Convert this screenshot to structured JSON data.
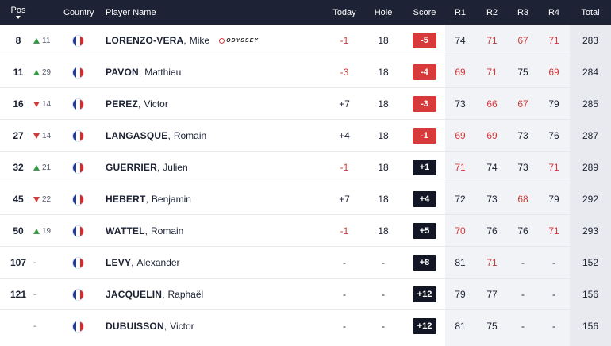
{
  "headers": {
    "pos": "Pos",
    "country": "Country",
    "player": "Player Name",
    "today": "Today",
    "hole": "Hole",
    "score": "Score",
    "r1": "R1",
    "r2": "R2",
    "r3": "R3",
    "r4": "R4",
    "total": "Total"
  },
  "sponsor": {
    "label": "ODYSSEY",
    "icon": "odyssey-logo"
  },
  "colors": {
    "header_bg": "#1d2235",
    "under_par": "#d63a3a",
    "over_par": "#121625",
    "up": "#3a9a4a",
    "down": "#d23a3a"
  },
  "rows": [
    {
      "pos": "8",
      "move_dir": "up",
      "move": "11",
      "last": "LORENZO-VERA",
      "first": "Mike",
      "sponsor": true,
      "today": "-1",
      "hole": "18",
      "score": "-5",
      "r1": "74",
      "r2": "71",
      "r3": "67",
      "r4": "71",
      "total": "283"
    },
    {
      "pos": "11",
      "move_dir": "up",
      "move": "29",
      "last": "PAVON",
      "first": "Matthieu",
      "sponsor": false,
      "today": "-3",
      "hole": "18",
      "score": "-4",
      "r1": "69",
      "r2": "71",
      "r3": "75",
      "r4": "69",
      "total": "284"
    },
    {
      "pos": "16",
      "move_dir": "down",
      "move": "14",
      "last": "PEREZ",
      "first": "Victor",
      "sponsor": false,
      "today": "+7",
      "hole": "18",
      "score": "-3",
      "r1": "73",
      "r2": "66",
      "r3": "67",
      "r4": "79",
      "total": "285"
    },
    {
      "pos": "27",
      "move_dir": "down",
      "move": "14",
      "last": "LANGASQUE",
      "first": "Romain",
      "sponsor": false,
      "today": "+4",
      "hole": "18",
      "score": "-1",
      "r1": "69",
      "r2": "69",
      "r3": "73",
      "r4": "76",
      "total": "287"
    },
    {
      "pos": "32",
      "move_dir": "up",
      "move": "21",
      "last": "GUERRIER",
      "first": "Julien",
      "sponsor": false,
      "today": "-1",
      "hole": "18",
      "score": "+1",
      "r1": "71",
      "r2": "74",
      "r3": "73",
      "r4": "71",
      "total": "289"
    },
    {
      "pos": "45",
      "move_dir": "down",
      "move": "22",
      "last": "HEBERT",
      "first": "Benjamin",
      "sponsor": false,
      "today": "+7",
      "hole": "18",
      "score": "+4",
      "r1": "72",
      "r2": "73",
      "r3": "68",
      "r4": "79",
      "total": "292"
    },
    {
      "pos": "50",
      "move_dir": "up",
      "move": "19",
      "last": "WATTEL",
      "first": "Romain",
      "sponsor": false,
      "today": "-1",
      "hole": "18",
      "score": "+5",
      "r1": "70",
      "r2": "76",
      "r3": "76",
      "r4": "71",
      "total": "293"
    },
    {
      "pos": "107",
      "move_dir": "none",
      "move": "-",
      "last": "LEVY",
      "first": "Alexander",
      "sponsor": false,
      "today": "-",
      "hole": "-",
      "score": "+8",
      "r1": "81",
      "r2": "71",
      "r3": "-",
      "r4": "-",
      "total": "152"
    },
    {
      "pos": "121",
      "move_dir": "none",
      "move": "-",
      "last": "JACQUELIN",
      "first": "Raphaël",
      "sponsor": false,
      "today": "-",
      "hole": "-",
      "score": "+12",
      "r1": "79",
      "r2": "77",
      "r3": "-",
      "r4": "-",
      "total": "156"
    },
    {
      "pos": "",
      "move_dir": "none",
      "move": "-",
      "last": "DUBUISSON",
      "first": "Victor",
      "sponsor": false,
      "today": "-",
      "hole": "-",
      "score": "+12",
      "r1": "81",
      "r2": "75",
      "r3": "-",
      "r4": "-",
      "total": "156"
    }
  ]
}
